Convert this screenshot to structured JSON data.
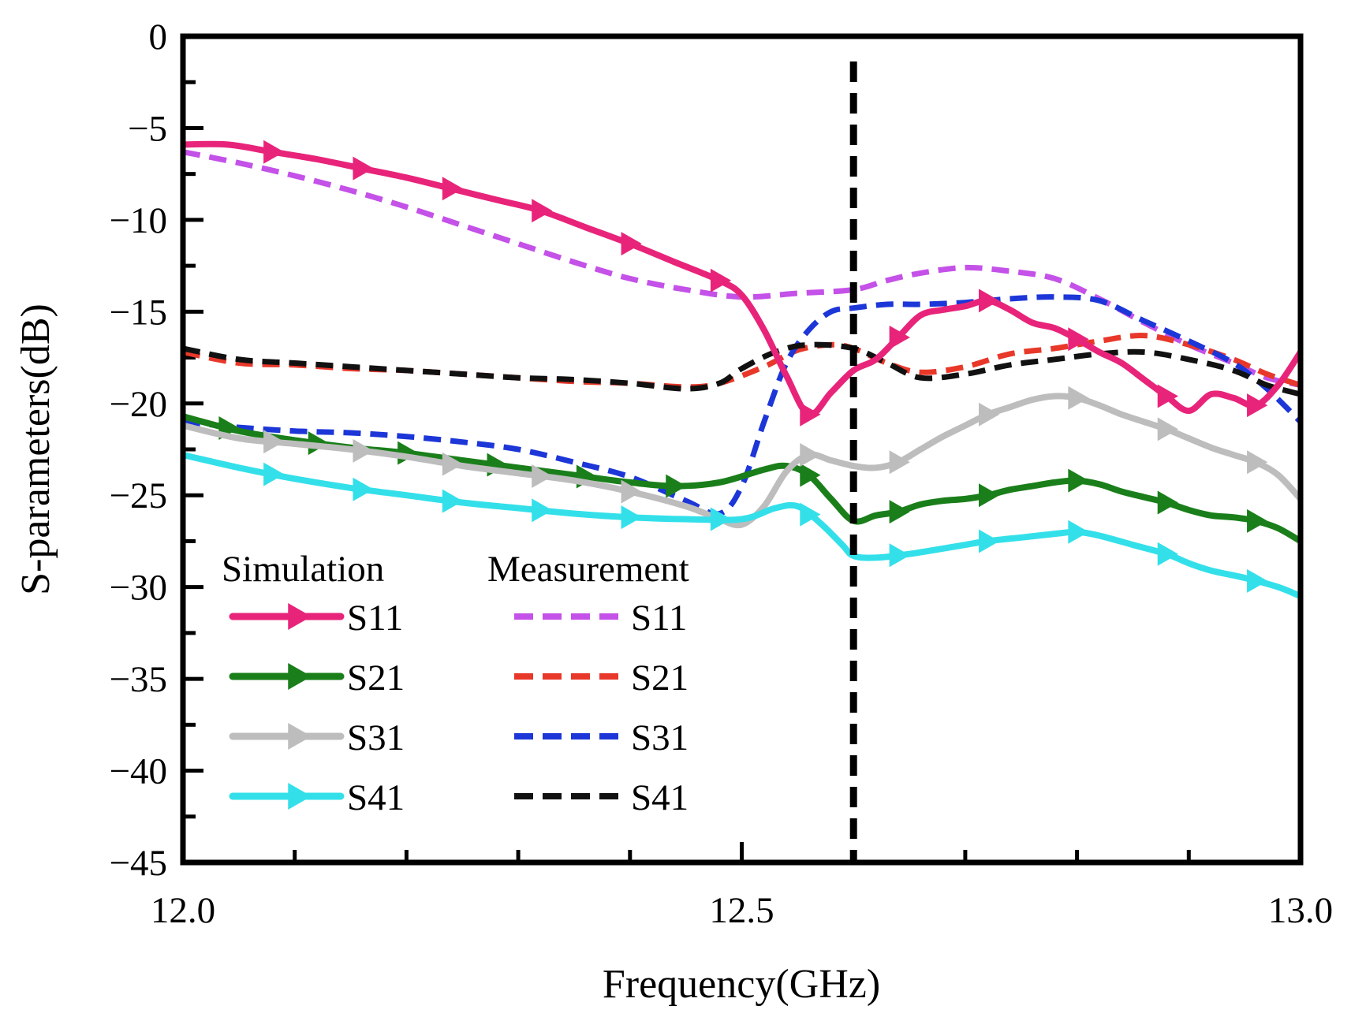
{
  "chart_data": {
    "type": "line",
    "xlabel": "Frequency(GHz)",
    "ylabel": "S-parameters(dB)",
    "xlim": [
      12.0,
      13.0
    ],
    "ylim": [
      -45,
      0
    ],
    "x_ticks": [
      12.0,
      12.5,
      13.0
    ],
    "x_tick_labels": [
      "12.0",
      "12.5",
      "13.0"
    ],
    "x_minor_step": 0.1,
    "y_ticks": [
      0,
      -5,
      -10,
      -15,
      -20,
      -25,
      -30,
      -35,
      -40,
      -45
    ],
    "y_tick_labels": [
      "0",
      "−5",
      "−10",
      "−15",
      "−20",
      "−25",
      "−30",
      "−35",
      "−40",
      "−45"
    ],
    "y_minor_step": 2.5,
    "reference_line_x": 12.6,
    "legend": {
      "placement": "bottom-left",
      "group_titles": [
        "Simulation",
        "Measurement"
      ]
    },
    "series": [
      {
        "name": "S11",
        "group": "Simulation",
        "color": "#e8247a",
        "style": "solid-marker",
        "x": [
          12.0,
          12.04,
          12.08,
          12.12,
          12.16,
          12.2,
          12.24,
          12.28,
          12.32,
          12.36,
          12.4,
          12.44,
          12.48,
          12.5,
          12.52,
          12.54,
          12.56,
          12.58,
          12.6,
          12.62,
          12.64,
          12.66,
          12.68,
          12.7,
          12.72,
          12.74,
          12.76,
          12.78,
          12.8,
          12.82,
          12.84,
          12.86,
          12.88,
          12.9,
          12.92,
          12.94,
          12.96,
          12.98,
          13.0
        ],
        "y": [
          -5.9,
          -5.9,
          -6.3,
          -6.7,
          -7.2,
          -7.7,
          -8.3,
          -8.9,
          -9.5,
          -10.4,
          -11.3,
          -12.3,
          -13.3,
          -14.1,
          -16.0,
          -18.5,
          -20.6,
          -19.4,
          -18.2,
          -17.6,
          -16.4,
          -15.2,
          -14.9,
          -14.7,
          -14.4,
          -14.9,
          -15.6,
          -15.9,
          -16.5,
          -17.2,
          -17.8,
          -18.7,
          -19.6,
          -20.4,
          -19.5,
          -19.7,
          -20.1,
          -19.0,
          -17.2
        ],
        "markers_x": [
          12.08,
          12.16,
          12.24,
          12.32,
          12.4,
          12.48,
          12.56,
          12.64,
          12.72,
          12.8,
          12.88,
          12.96
        ]
      },
      {
        "name": "S21",
        "group": "Simulation",
        "color": "#1a7f1a",
        "style": "solid-marker",
        "x": [
          12.0,
          12.05,
          12.1,
          12.15,
          12.2,
          12.25,
          12.3,
          12.35,
          12.4,
          12.44,
          12.48,
          12.52,
          12.54,
          12.56,
          12.58,
          12.6,
          12.62,
          12.64,
          12.66,
          12.68,
          12.7,
          12.72,
          12.74,
          12.76,
          12.78,
          12.8,
          12.82,
          12.84,
          12.86,
          12.88,
          12.9,
          12.92,
          12.94,
          12.96,
          12.98,
          13.0
        ],
        "y": [
          -20.7,
          -21.5,
          -22.0,
          -22.4,
          -22.7,
          -23.1,
          -23.5,
          -23.9,
          -24.3,
          -24.5,
          -24.3,
          -23.6,
          -23.4,
          -23.9,
          -25.2,
          -26.4,
          -26.1,
          -25.9,
          -25.5,
          -25.3,
          -25.2,
          -25.0,
          -24.7,
          -24.5,
          -24.3,
          -24.2,
          -24.4,
          -24.8,
          -25.1,
          -25.4,
          -25.8,
          -26.1,
          -26.2,
          -26.4,
          -26.8,
          -27.5
        ],
        "markers_x": [
          12.04,
          12.12,
          12.2,
          12.28,
          12.36,
          12.44,
          12.56,
          12.64,
          12.72,
          12.8,
          12.88,
          12.96
        ]
      },
      {
        "name": "S31",
        "group": "Simulation",
        "color": "#bdbdbd",
        "style": "solid-marker",
        "x": [
          12.0,
          12.05,
          12.1,
          12.15,
          12.2,
          12.25,
          12.3,
          12.35,
          12.4,
          12.45,
          12.48,
          12.5,
          12.52,
          12.54,
          12.56,
          12.58,
          12.6,
          12.62,
          12.64,
          12.66,
          12.68,
          12.7,
          12.72,
          12.74,
          12.76,
          12.78,
          12.8,
          12.82,
          12.84,
          12.86,
          12.88,
          12.9,
          12.92,
          12.94,
          12.96,
          12.98,
          13.0
        ],
        "y": [
          -21.2,
          -21.9,
          -22.2,
          -22.5,
          -22.9,
          -23.4,
          -23.8,
          -24.2,
          -24.8,
          -25.6,
          -26.3,
          -26.6,
          -25.6,
          -23.7,
          -22.8,
          -23.1,
          -23.4,
          -23.5,
          -23.2,
          -22.5,
          -21.8,
          -21.2,
          -20.6,
          -20.2,
          -19.8,
          -19.6,
          -19.7,
          -20.1,
          -20.6,
          -21.0,
          -21.4,
          -21.9,
          -22.4,
          -22.8,
          -23.2,
          -23.9,
          -25.2
        ],
        "markers_x": [
          12.08,
          12.16,
          12.24,
          12.32,
          12.4,
          12.48,
          12.56,
          12.64,
          12.72,
          12.8,
          12.88,
          12.96
        ]
      },
      {
        "name": "S41",
        "group": "Simulation",
        "color": "#33e0ea",
        "style": "solid-marker",
        "x": [
          12.0,
          12.05,
          12.1,
          12.15,
          12.2,
          12.25,
          12.3,
          12.35,
          12.4,
          12.45,
          12.5,
          12.53,
          12.55,
          12.57,
          12.59,
          12.6,
          12.62,
          12.65,
          12.68,
          12.7,
          12.72,
          12.75,
          12.78,
          12.8,
          12.82,
          12.85,
          12.88,
          12.9,
          12.92,
          12.95,
          12.98,
          13.0
        ],
        "y": [
          -22.8,
          -23.5,
          -24.1,
          -24.6,
          -25.0,
          -25.4,
          -25.7,
          -26.0,
          -26.2,
          -26.3,
          -26.3,
          -25.7,
          -25.6,
          -26.5,
          -27.7,
          -28.3,
          -28.4,
          -28.2,
          -27.9,
          -27.7,
          -27.5,
          -27.3,
          -27.1,
          -27.0,
          -27.2,
          -27.7,
          -28.2,
          -28.7,
          -29.1,
          -29.5,
          -30.0,
          -30.5
        ],
        "markers_x": [
          12.08,
          12.16,
          12.24,
          12.32,
          12.4,
          12.48,
          12.56,
          12.64,
          12.72,
          12.8,
          12.88,
          12.96
        ]
      },
      {
        "name": "S11",
        "group": "Measurement",
        "color": "#c451e8",
        "style": "dashed",
        "x": [
          12.0,
          12.05,
          12.1,
          12.15,
          12.2,
          12.25,
          12.3,
          12.35,
          12.4,
          12.45,
          12.5,
          12.55,
          12.6,
          12.63,
          12.66,
          12.7,
          12.74,
          12.78,
          12.82,
          12.86,
          12.9,
          12.94,
          12.97,
          13.0
        ],
        "y": [
          -6.3,
          -6.9,
          -7.6,
          -8.4,
          -9.3,
          -10.3,
          -11.3,
          -12.3,
          -13.2,
          -13.8,
          -14.2,
          -14.0,
          -13.8,
          -13.3,
          -12.9,
          -12.6,
          -12.8,
          -13.2,
          -14.3,
          -15.6,
          -16.8,
          -17.8,
          -18.6,
          -19.0
        ]
      },
      {
        "name": "S21",
        "group": "Measurement",
        "color": "#e8382a",
        "style": "dashed",
        "x": [
          12.0,
          12.05,
          12.1,
          12.15,
          12.2,
          12.25,
          12.3,
          12.35,
          12.4,
          12.45,
          12.48,
          12.52,
          12.55,
          12.58,
          12.6,
          12.63,
          12.66,
          12.7,
          12.74,
          12.78,
          12.82,
          12.86,
          12.9,
          12.94,
          12.97,
          13.0
        ],
        "y": [
          -17.2,
          -17.8,
          -17.9,
          -18.1,
          -18.2,
          -18.4,
          -18.6,
          -18.8,
          -18.9,
          -19.1,
          -18.9,
          -18.0,
          -17.1,
          -16.8,
          -17.0,
          -17.8,
          -18.3,
          -18.0,
          -17.3,
          -17.0,
          -16.6,
          -16.3,
          -16.8,
          -17.6,
          -18.4,
          -19.0
        ]
      },
      {
        "name": "S31",
        "group": "Measurement",
        "color": "#1c36d8",
        "style": "dashed",
        "x": [
          12.0,
          12.05,
          12.1,
          12.15,
          12.2,
          12.25,
          12.3,
          12.35,
          12.4,
          12.45,
          12.48,
          12.5,
          12.52,
          12.54,
          12.56,
          12.58,
          12.6,
          12.63,
          12.66,
          12.7,
          12.74,
          12.78,
          12.82,
          12.86,
          12.9,
          12.94,
          12.97,
          13.0
        ],
        "y": [
          -21.0,
          -21.3,
          -21.5,
          -21.6,
          -21.8,
          -22.1,
          -22.5,
          -23.2,
          -24.0,
          -25.3,
          -26.0,
          -24.5,
          -21.0,
          -17.8,
          -16.0,
          -15.0,
          -14.8,
          -14.6,
          -14.6,
          -14.5,
          -14.3,
          -14.2,
          -14.4,
          -15.5,
          -16.6,
          -17.8,
          -19.2,
          -21.0
        ]
      },
      {
        "name": "S41",
        "group": "Measurement",
        "color": "#111111",
        "style": "dashed",
        "x": [
          12.0,
          12.05,
          12.1,
          12.15,
          12.2,
          12.25,
          12.3,
          12.35,
          12.4,
          12.45,
          12.48,
          12.5,
          12.53,
          12.56,
          12.6,
          12.63,
          12.66,
          12.7,
          12.74,
          12.78,
          12.82,
          12.86,
          12.9,
          12.94,
          12.97,
          13.0
        ],
        "y": [
          -17.0,
          -17.6,
          -17.8,
          -18.0,
          -18.2,
          -18.4,
          -18.6,
          -18.7,
          -18.9,
          -19.2,
          -18.9,
          -18.1,
          -17.2,
          -16.8,
          -17.0,
          -17.8,
          -18.6,
          -18.4,
          -17.9,
          -17.6,
          -17.3,
          -17.2,
          -17.6,
          -18.2,
          -19.0,
          -19.5
        ]
      }
    ]
  }
}
